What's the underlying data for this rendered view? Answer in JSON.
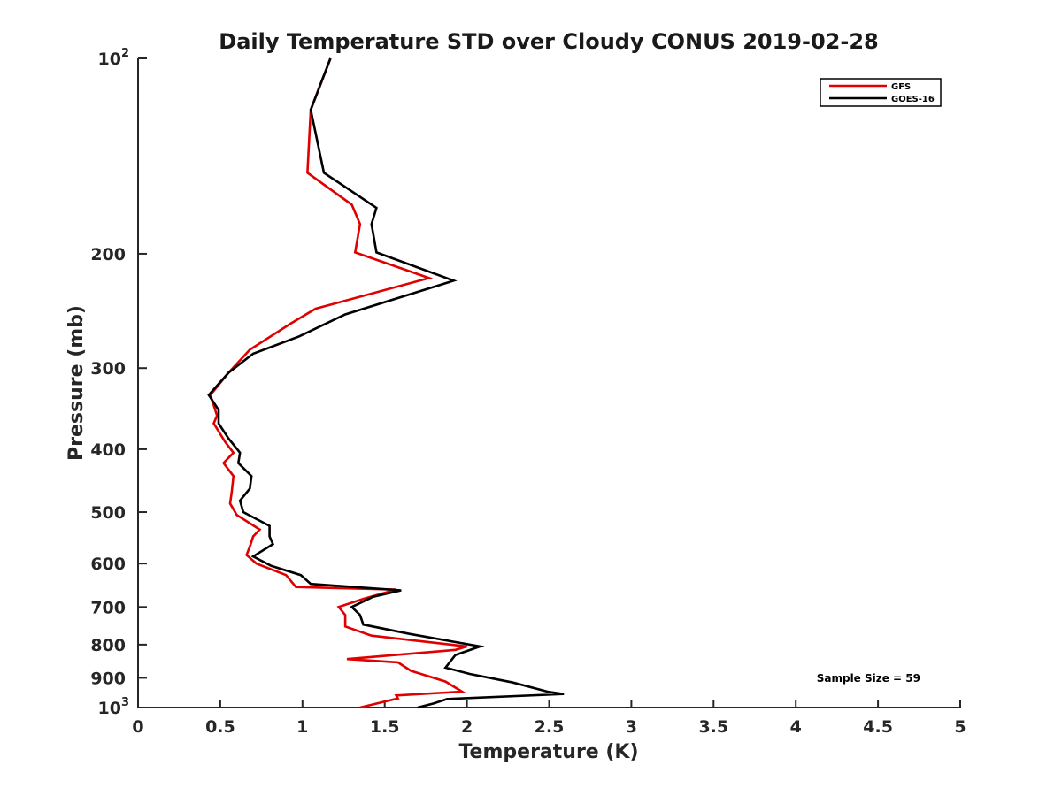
{
  "chart_data": {
    "type": "line",
    "title": "Daily Temperature STD over Cloudy CONUS 2019-02-28",
    "xlabel": "Temperature (K)",
    "ylabel": "Pressure (mb)",
    "xlim": [
      0,
      5
    ],
    "ylim": [
      100,
      1000
    ],
    "y_scale": "log",
    "y_reversed": true,
    "x_ticks": [
      0,
      0.5,
      1,
      1.5,
      2,
      2.5,
      3,
      3.5,
      4,
      4.5,
      5
    ],
    "x_tick_labels": [
      "0",
      "0.5",
      "1",
      "1.5",
      "2",
      "2.5",
      "3",
      "3.5",
      "4",
      "4.5",
      "5"
    ],
    "y_ticks": [
      100,
      200,
      300,
      400,
      500,
      600,
      700,
      800,
      900,
      1000
    ],
    "y_tick_labels": [
      "10^2",
      "200",
      "300",
      "400",
      "500",
      "600",
      "700",
      "800",
      "900",
      "10^3"
    ],
    "legend_position": "top-right",
    "annotation": "Sample Size = 59",
    "series": [
      {
        "name": "GFS",
        "color": "#e00000",
        "points": [
          [
            1.17,
            100
          ],
          [
            1.05,
            120
          ],
          [
            1.03,
            150
          ],
          [
            1.3,
            168
          ],
          [
            1.35,
            180
          ],
          [
            1.32,
            199
          ],
          [
            1.77,
            218
          ],
          [
            1.08,
            243
          ],
          [
            0.93,
            256
          ],
          [
            0.68,
            281
          ],
          [
            0.55,
            305
          ],
          [
            0.44,
            330
          ],
          [
            0.48,
            355
          ],
          [
            0.46,
            365
          ],
          [
            0.53,
            390
          ],
          [
            0.58,
            405
          ],
          [
            0.52,
            420
          ],
          [
            0.58,
            440
          ],
          [
            0.57,
            465
          ],
          [
            0.56,
            485
          ],
          [
            0.6,
            505
          ],
          [
            0.74,
            532
          ],
          [
            0.7,
            545
          ],
          [
            0.68,
            565
          ],
          [
            0.66,
            582
          ],
          [
            0.72,
            600
          ],
          [
            0.9,
            625
          ],
          [
            0.96,
            652
          ],
          [
            1.57,
            658
          ],
          [
            1.37,
            680
          ],
          [
            1.22,
            700
          ],
          [
            1.26,
            720
          ],
          [
            1.26,
            750
          ],
          [
            1.42,
            775
          ],
          [
            2.0,
            805
          ],
          [
            1.93,
            815
          ],
          [
            1.27,
            842
          ],
          [
            1.58,
            852
          ],
          [
            1.66,
            878
          ],
          [
            1.87,
            912
          ],
          [
            1.97,
            945
          ],
          [
            1.57,
            958
          ],
          [
            1.58,
            968
          ],
          [
            1.35,
            1000
          ]
        ]
      },
      {
        "name": "GOES-16",
        "color": "#000000",
        "points": [
          [
            1.17,
            100
          ],
          [
            1.05,
            120
          ],
          [
            1.13,
            150
          ],
          [
            1.45,
            170
          ],
          [
            1.42,
            180
          ],
          [
            1.45,
            199
          ],
          [
            1.92,
            220
          ],
          [
            1.26,
            248
          ],
          [
            0.98,
            268
          ],
          [
            0.7,
            285
          ],
          [
            0.55,
            305
          ],
          [
            0.43,
            330
          ],
          [
            0.49,
            348
          ],
          [
            0.49,
            365
          ],
          [
            0.55,
            385
          ],
          [
            0.62,
            405
          ],
          [
            0.61,
            420
          ],
          [
            0.69,
            440
          ],
          [
            0.68,
            460
          ],
          [
            0.62,
            480
          ],
          [
            0.64,
            500
          ],
          [
            0.8,
            525
          ],
          [
            0.8,
            545
          ],
          [
            0.82,
            560
          ],
          [
            0.7,
            585
          ],
          [
            0.81,
            605
          ],
          [
            0.99,
            625
          ],
          [
            1.05,
            645
          ],
          [
            1.6,
            660
          ],
          [
            1.43,
            675
          ],
          [
            1.3,
            700
          ],
          [
            1.35,
            720
          ],
          [
            1.37,
            745
          ],
          [
            1.65,
            770
          ],
          [
            2.08,
            805
          ],
          [
            1.93,
            830
          ],
          [
            1.87,
            868
          ],
          [
            2.02,
            888
          ],
          [
            2.28,
            915
          ],
          [
            2.49,
            945
          ],
          [
            2.59,
            953
          ],
          [
            1.88,
            970
          ],
          [
            1.8,
            985
          ],
          [
            1.7,
            1000
          ]
        ]
      }
    ]
  }
}
